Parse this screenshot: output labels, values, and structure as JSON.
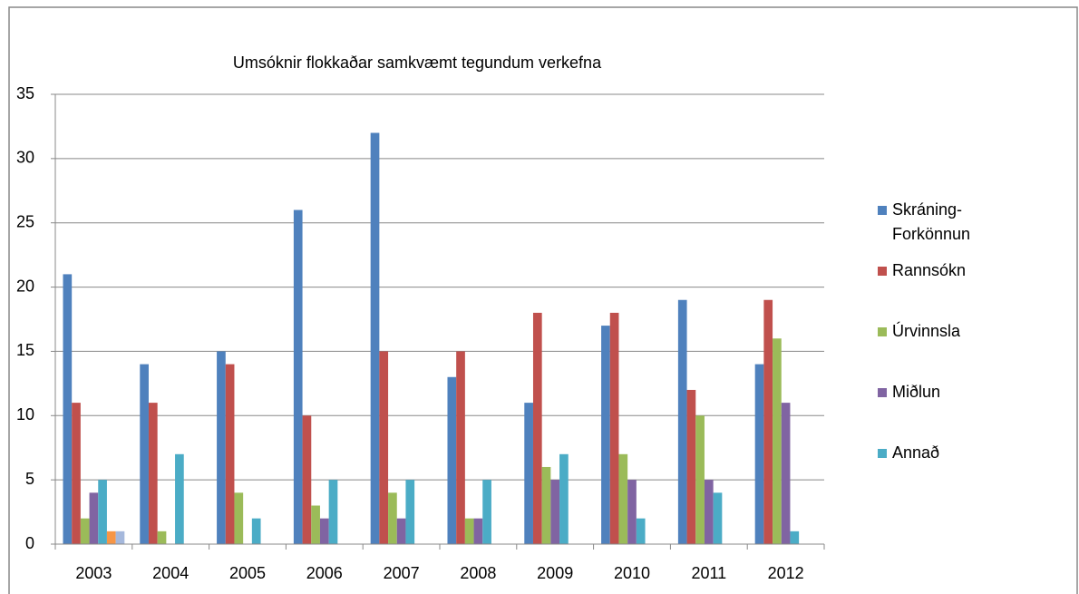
{
  "chart_data": {
    "type": "bar",
    "title": "Umsóknir flokkaðar samkvæmt tegundum verkefna",
    "categories": [
      "2003",
      "2004",
      "2005",
      "2006",
      "2007",
      "2008",
      "2009",
      "2010",
      "2011",
      "2012"
    ],
    "series": [
      {
        "name": "Skráning-Forkönnun",
        "color": "#4f81bd",
        "values": [
          21,
          14,
          15,
          26,
          32,
          13,
          11,
          17,
          19,
          14
        ]
      },
      {
        "name": "Rannsókn",
        "color": "#c0504d",
        "values": [
          11,
          11,
          14,
          10,
          15,
          15,
          18,
          18,
          12,
          19
        ]
      },
      {
        "name": "Úrvinnsla",
        "color": "#9bbb59",
        "values": [
          2,
          1,
          4,
          3,
          4,
          2,
          6,
          7,
          10,
          16
        ]
      },
      {
        "name": "Miðlun",
        "color": "#8064a2",
        "values": [
          4,
          0,
          0,
          2,
          2,
          2,
          5,
          5,
          5,
          11
        ]
      },
      {
        "name": "Annað",
        "color": "#4bacc6",
        "values": [
          5,
          7,
          2,
          5,
          5,
          5,
          7,
          2,
          4,
          1
        ]
      },
      {
        "color": "#f79646",
        "values": [
          1,
          null,
          null,
          null,
          null,
          null,
          null,
          null,
          null,
          null
        ]
      },
      {
        "color": "#a5b8dc",
        "values": [
          1,
          null,
          null,
          null,
          null,
          null,
          null,
          null,
          null,
          null
        ]
      }
    ],
    "ylim": [
      0,
      35
    ],
    "yticks": [
      0,
      5,
      10,
      15,
      20,
      25,
      30,
      35
    ],
    "grid": true,
    "legend": "right"
  }
}
